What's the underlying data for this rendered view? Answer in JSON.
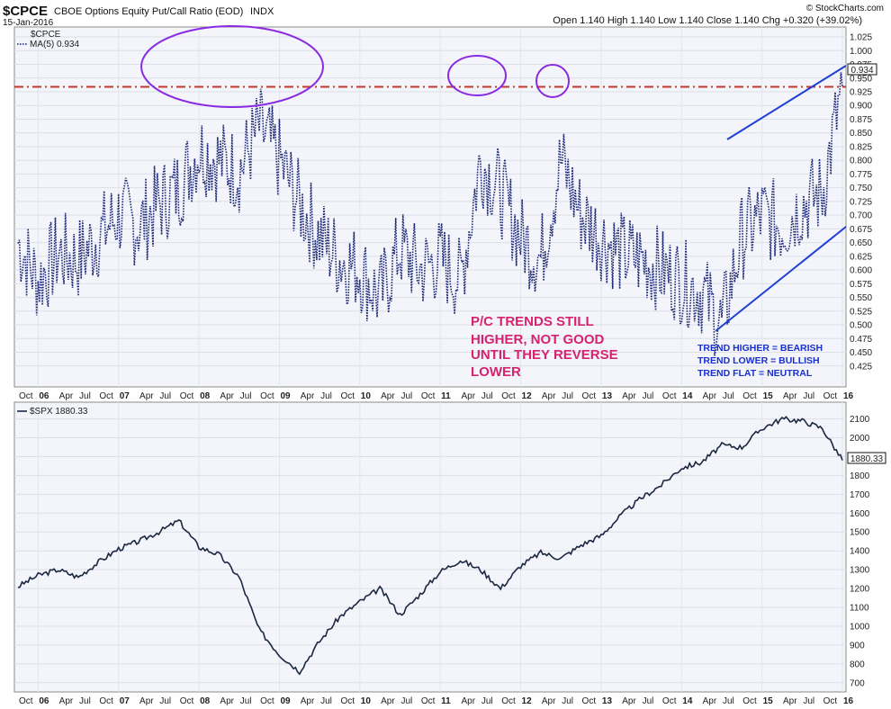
{
  "header": {
    "symbol": "$CPCE",
    "title": "CBOE Options Equity Put/Call Ratio (EOD)",
    "exchange": "INDX",
    "date": "15-Jan-2016",
    "quote_label": "Open 1.140 High 1.140 Low 1.140 Close 1.140 Chg +0.320 (+39.02%)",
    "watermark": "© StockCharts.com"
  },
  "colors": {
    "background": "#f3f5fa",
    "cpce_line": "#1f2a78",
    "spx_line": "#1c2742",
    "threshold_line": "#c0392b",
    "ellipse": "#8a2be2",
    "trend_lines": "#1f3fd6",
    "annotation": "#d6226f",
    "legend_text": "#1a2fd0"
  },
  "chart_data": [
    {
      "type": "line",
      "panel": "top",
      "legend": [
        "$CPCE",
        "MA(5) 0.934"
      ],
      "last_value_label": "0.934",
      "ylim": [
        0.4,
        1.03
      ],
      "yticks": [
        0.425,
        0.45,
        0.475,
        0.5,
        0.525,
        0.55,
        0.575,
        0.6,
        0.625,
        0.65,
        0.675,
        0.7,
        0.725,
        0.75,
        0.775,
        0.8,
        0.825,
        0.85,
        0.875,
        0.9,
        0.925,
        0.95,
        0.975,
        1.0,
        1.025
      ],
      "reference_line": 0.934,
      "x": [
        "2005-10",
        "2006-01",
        "2006-04",
        "2006-07",
        "2006-10",
        "2007-01",
        "2007-04",
        "2007-07",
        "2007-10",
        "2008-01",
        "2008-04",
        "2008-07",
        "2008-10",
        "2009-01",
        "2009-04",
        "2009-07",
        "2009-10",
        "2010-01",
        "2010-04",
        "2010-07",
        "2010-10",
        "2011-01",
        "2011-04",
        "2011-07",
        "2011-10",
        "2012-01",
        "2012-04",
        "2012-07",
        "2012-10",
        "2013-01",
        "2013-04",
        "2013-07",
        "2013-10",
        "2014-01",
        "2014-04",
        "2014-07",
        "2014-10",
        "2015-01",
        "2015-04",
        "2015-07",
        "2015-10",
        "2016-01"
      ],
      "series": [
        {
          "name": "MA(5) 0.934",
          "values": [
            0.65,
            0.58,
            0.63,
            0.62,
            0.66,
            0.7,
            0.68,
            0.72,
            0.75,
            0.82,
            0.8,
            0.78,
            0.86,
            0.8,
            0.72,
            0.66,
            0.62,
            0.6,
            0.55,
            0.64,
            0.6,
            0.62,
            0.58,
            0.8,
            0.74,
            0.66,
            0.62,
            0.8,
            0.7,
            0.66,
            0.63,
            0.62,
            0.6,
            0.58,
            0.56,
            0.5,
            0.66,
            0.7,
            0.68,
            0.72,
            0.74,
            0.934
          ]
        }
      ],
      "annotations": [
        "P/C TRENDS STILL",
        "HIGHER, NOT GOOD",
        "UNTIL THEY REVERSE",
        "LOWER"
      ],
      "trend_legend": [
        "TREND HIGHER = BEARISH",
        "TREND LOWER = BULLISH",
        "TREND FLAT = NEUTRAL"
      ]
    },
    {
      "type": "line",
      "panel": "bottom",
      "legend": [
        "$SPX 1880.33"
      ],
      "last_value_label": "1880.33",
      "ylim": [
        680,
        2160
      ],
      "yticks": [
        700,
        800,
        900,
        1000,
        1100,
        1200,
        1300,
        1400,
        1500,
        1600,
        1700,
        1800,
        1900,
        2000,
        2100
      ],
      "x": [
        "2005-10",
        "2006-01",
        "2006-04",
        "2006-07",
        "2006-10",
        "2007-01",
        "2007-04",
        "2007-07",
        "2007-10",
        "2008-01",
        "2008-04",
        "2008-07",
        "2008-10",
        "2009-01",
        "2009-04",
        "2009-07",
        "2009-10",
        "2010-01",
        "2010-04",
        "2010-07",
        "2010-10",
        "2011-01",
        "2011-04",
        "2011-07",
        "2011-10",
        "2012-01",
        "2012-04",
        "2012-07",
        "2012-10",
        "2013-01",
        "2013-04",
        "2013-07",
        "2013-10",
        "2014-01",
        "2014-04",
        "2014-07",
        "2014-10",
        "2015-01",
        "2015-04",
        "2015-07",
        "2015-10",
        "2016-01"
      ],
      "series": [
        {
          "name": "$SPX 1880.33",
          "values": [
            1210,
            1270,
            1300,
            1260,
            1340,
            1410,
            1450,
            1500,
            1560,
            1420,
            1380,
            1260,
            980,
            850,
            760,
            920,
            1050,
            1130,
            1200,
            1060,
            1170,
            1290,
            1350,
            1300,
            1200,
            1320,
            1390,
            1360,
            1430,
            1480,
            1590,
            1680,
            1750,
            1840,
            1870,
            1960,
            1950,
            2050,
            2100,
            2090,
            2050,
            1880
          ]
        }
      ]
    }
  ],
  "x_axis": {
    "labels": [
      "Oct",
      "06",
      "Apr",
      "Jul",
      "Oct",
      "07",
      "Apr",
      "Jul",
      "Oct",
      "08",
      "Apr",
      "Jul",
      "Oct",
      "09",
      "Apr",
      "Jul",
      "Oct",
      "10",
      "Apr",
      "Jul",
      "Oct",
      "11",
      "Apr",
      "Jul",
      "Oct",
      "12",
      "Apr",
      "Jul",
      "Oct",
      "13",
      "Apr",
      "Jul",
      "Oct",
      "14",
      "Apr",
      "Jul",
      "Oct",
      "15",
      "Apr",
      "Jul",
      "Oct",
      "16"
    ],
    "bold_labels": [
      "06",
      "07",
      "08",
      "09",
      "10",
      "11",
      "12",
      "13",
      "14",
      "15",
      "16"
    ]
  }
}
